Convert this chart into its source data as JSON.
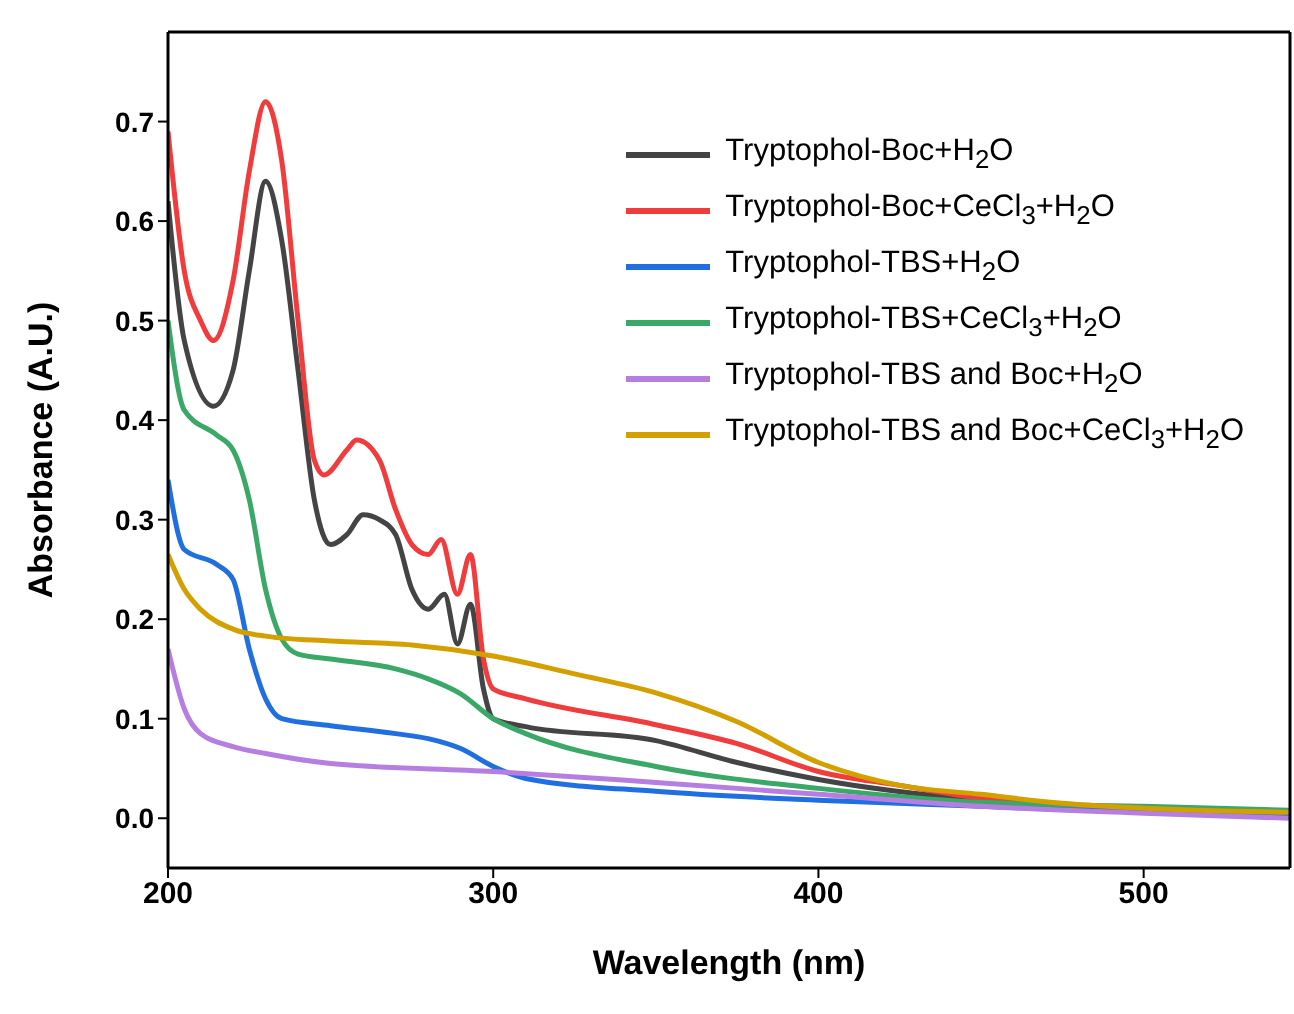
{
  "chart_data": {
    "type": "line",
    "xlabel": "Wavelength (nm)",
    "ylabel": "Absorbance (A.U.)",
    "xlim": [
      200,
      545
    ],
    "xticks": [
      200,
      300,
      400,
      500
    ],
    "ylim": [
      -0.05,
      0.79
    ],
    "yticks": [
      {
        "value": 0,
        "label": "0.0"
      },
      0.1,
      0.2,
      0.3,
      0.4,
      0.5,
      0.6,
      0.7
    ],
    "legend": "top right",
    "marker": "none",
    "line_style": "solid",
    "series": [
      {
        "name": "Tryptophol-Boc+H$_{2}$O",
        "color": "#444444",
        "x": [
          200,
          205,
          214,
          220,
          225,
          230,
          235,
          240,
          245,
          250,
          255,
          260,
          265,
          270,
          275,
          280,
          285,
          289,
          293,
          297,
          300,
          310,
          350,
          375,
          400,
          450,
          500,
          545
        ],
        "values": [
          0.62,
          0.48,
          0.414,
          0.45,
          0.55,
          0.64,
          0.58,
          0.45,
          0.32,
          0.275,
          0.285,
          0.305,
          0.3,
          0.285,
          0.23,
          0.21,
          0.225,
          0.175,
          0.215,
          0.13,
          0.1,
          0.092,
          0.078,
          0.056,
          0.039,
          0.018,
          0.008,
          0.001
        ]
      },
      {
        "name": "Tryptophol-Boc+CeCl$_{3}$+H$_{2}$O",
        "color": "#f03c3c",
        "x": [
          200,
          205,
          210,
          214,
          220,
          225,
          230,
          235,
          240,
          245,
          248,
          255,
          258,
          265,
          270,
          275,
          280,
          284,
          289,
          293,
          297,
          300,
          310,
          350,
          375,
          400,
          425,
          450,
          500,
          545
        ],
        "values": [
          0.69,
          0.55,
          0.5,
          0.48,
          0.54,
          0.65,
          0.72,
          0.66,
          0.5,
          0.36,
          0.345,
          0.37,
          0.38,
          0.36,
          0.31,
          0.275,
          0.265,
          0.28,
          0.225,
          0.265,
          0.16,
          0.13,
          0.12,
          0.094,
          0.075,
          0.047,
          0.033,
          0.02,
          0.008,
          0.002
        ]
      },
      {
        "name": "Tryptophol-TBS+H$_{2}$O",
        "color": "#1f6fe0",
        "x": [
          200,
          205,
          215,
          220,
          225,
          230,
          235,
          250,
          270,
          280,
          290,
          300,
          310,
          350,
          400,
          450,
          500,
          545
        ],
        "values": [
          0.34,
          0.27,
          0.255,
          0.24,
          0.17,
          0.12,
          0.1,
          0.093,
          0.085,
          0.08,
          0.07,
          0.052,
          0.04,
          0.027,
          0.018,
          0.012,
          0.006,
          0.003
        ]
      },
      {
        "name": "Tryptophol-TBS+CeCl$_{3}$+H$_{2}$O",
        "color": "#3aa866",
        "x": [
          200,
          205,
          215,
          220,
          225,
          230,
          235,
          240,
          250,
          270,
          280,
          290,
          300,
          310,
          350,
          400,
          450,
          500,
          545
        ],
        "values": [
          0.5,
          0.41,
          0.385,
          0.37,
          0.32,
          0.23,
          0.18,
          0.165,
          0.16,
          0.15,
          0.14,
          0.125,
          0.1,
          0.085,
          0.052,
          0.03,
          0.016,
          0.012,
          0.008
        ]
      },
      {
        "name": "Tryptophol-TBS and Boc+H$_{2}$O",
        "color": "#b57ee0",
        "x": [
          200,
          205,
          210,
          220,
          230,
          250,
          300,
          350,
          400,
          450,
          500,
          545
        ],
        "values": [
          0.17,
          0.11,
          0.085,
          0.072,
          0.065,
          0.055,
          0.047,
          0.036,
          0.024,
          0.012,
          0.005,
          0.0
        ]
      },
      {
        "name": "Tryptophol-TBS and Boc+CeCl$_{3}$+H$_{2}$O",
        "color": "#d4a000",
        "x": [
          200,
          205,
          210,
          220,
          230,
          250,
          275,
          300,
          325,
          350,
          375,
          400,
          425,
          450,
          475,
          500,
          545
        ],
        "values": [
          0.265,
          0.23,
          0.21,
          0.19,
          0.183,
          0.178,
          0.174,
          0.163,
          0.145,
          0.126,
          0.097,
          0.056,
          0.033,
          0.024,
          0.015,
          0.01,
          0.006
        ]
      }
    ]
  }
}
